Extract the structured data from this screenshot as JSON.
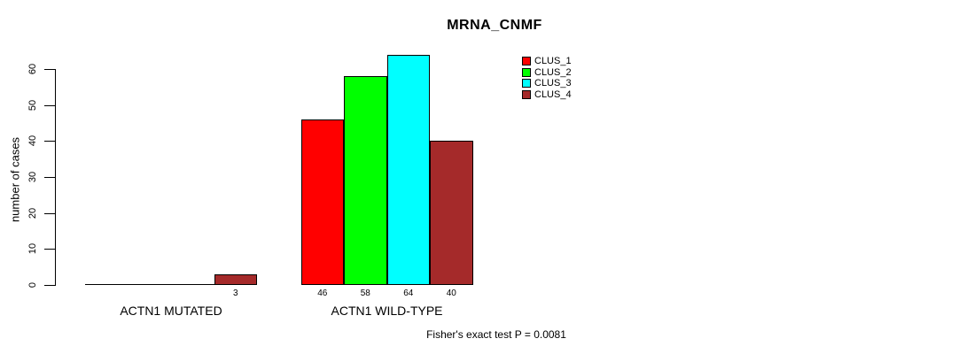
{
  "chart_data": {
    "type": "bar",
    "title": "MRNA_CNMF",
    "ylabel": "number of cases",
    "xlabel": "",
    "ylim": [
      0,
      60
    ],
    "yticks": [
      0,
      10,
      20,
      30,
      40,
      50,
      60
    ],
    "grid": false,
    "legend_position": "top-right",
    "legend": [
      {
        "name": "CLUS_1",
        "color": "#ff0000"
      },
      {
        "name": "CLUS_2",
        "color": "#00ff00"
      },
      {
        "name": "CLUS_3",
        "color": "#00ffff"
      },
      {
        "name": "CLUS_4",
        "color": "#a52a2a"
      }
    ],
    "categories": [
      "ACTN1 MUTATED",
      "ACTN1 WILD-TYPE"
    ],
    "groups": [
      {
        "label": "ACTN1 MUTATED",
        "series": [
          "CLUS_1",
          "CLUS_2",
          "CLUS_3",
          "CLUS_4"
        ],
        "values": [
          0,
          0,
          0,
          3
        ],
        "value_labels": [
          null,
          null,
          null,
          "3"
        ]
      },
      {
        "label": "ACTN1 WILD-TYPE",
        "series": [
          "CLUS_1",
          "CLUS_2",
          "CLUS_3",
          "CLUS_4"
        ],
        "values": [
          46,
          58,
          64,
          40
        ],
        "value_labels": [
          "46",
          "58",
          "64",
          "40"
        ]
      }
    ],
    "annotation": "Fisher's exact test P = 0.0081"
  }
}
